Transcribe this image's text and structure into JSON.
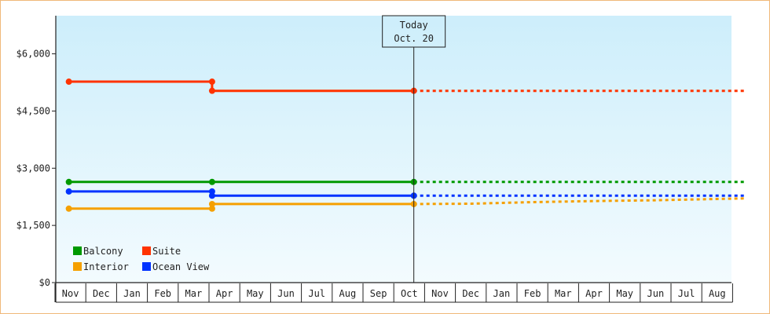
{
  "chart_data": {
    "type": "line",
    "title": "",
    "xlabel": "",
    "ylabel": "",
    "x_months": [
      "Nov",
      "Dec",
      "Jan",
      "Feb",
      "Mar",
      "Apr",
      "May",
      "Jun",
      "Jul",
      "Aug",
      "Sep",
      "Oct",
      "Nov",
      "Dec",
      "Jan",
      "Feb",
      "Mar",
      "Apr",
      "May",
      "Jun",
      "Jul",
      "Aug"
    ],
    "today_index": 11.15,
    "today_label": [
      "Today",
      "Oct. 20"
    ],
    "ylim": [
      0,
      7000
    ],
    "y_ticks": [
      0,
      1500,
      3000,
      4500,
      6000
    ],
    "y_tick_labels": [
      "$0",
      "$1,500",
      "$3,000",
      "$4,500",
      "$6,000"
    ],
    "grid": false,
    "background_gradient": [
      "#cdeefb",
      "#f3fbfe"
    ],
    "legend_position": "bottom-left",
    "series": [
      {
        "name": "Suite",
        "color": "#ff3300",
        "history": [
          [
            -0.05,
            5270
          ],
          [
            4.6,
            5270
          ],
          [
            4.6,
            5030
          ],
          [
            11.15,
            5030
          ]
        ],
        "markers": [
          [
            -0.05,
            5270
          ],
          [
            4.6,
            5270
          ],
          [
            4.6,
            5030
          ],
          [
            11.15,
            5030
          ]
        ],
        "projection": [
          [
            11.15,
            5030
          ],
          [
            21.95,
            5030
          ]
        ]
      },
      {
        "name": "Balcony",
        "color": "#009900",
        "history": [
          [
            -0.05,
            2640
          ],
          [
            4.6,
            2640
          ],
          [
            11.15,
            2640
          ]
        ],
        "markers": [
          [
            -0.05,
            2640
          ],
          [
            4.6,
            2640
          ],
          [
            11.15,
            2640
          ]
        ],
        "projection": [
          [
            11.15,
            2640
          ],
          [
            21.95,
            2640
          ]
        ]
      },
      {
        "name": "Ocean View",
        "color": "#0033ff",
        "history": [
          [
            -0.05,
            2390
          ],
          [
            4.6,
            2390
          ],
          [
            4.6,
            2280
          ],
          [
            11.15,
            2280
          ]
        ],
        "markers": [
          [
            -0.05,
            2390
          ],
          [
            4.6,
            2390
          ],
          [
            4.6,
            2280
          ],
          [
            11.15,
            2280
          ]
        ],
        "projection": [
          [
            11.15,
            2280
          ],
          [
            21.95,
            2280
          ]
        ]
      },
      {
        "name": "Interior",
        "color": "#f5a000",
        "history": [
          [
            -0.05,
            1940
          ],
          [
            4.6,
            1940
          ],
          [
            4.6,
            2060
          ],
          [
            11.15,
            2060
          ]
        ],
        "markers": [
          [
            -0.05,
            1940
          ],
          [
            4.6,
            1940
          ],
          [
            4.6,
            2060
          ],
          [
            11.15,
            2060
          ]
        ],
        "projection": [
          [
            11.15,
            2060
          ],
          [
            13,
            2070
          ],
          [
            15,
            2110
          ],
          [
            17,
            2140
          ],
          [
            19,
            2160
          ],
          [
            21.95,
            2210
          ]
        ]
      }
    ],
    "legend": [
      {
        "name": "Balcony",
        "color": "#009900"
      },
      {
        "name": "Suite",
        "color": "#ff3300"
      },
      {
        "name": "Interior",
        "color": "#f5a000"
      },
      {
        "name": "Ocean View",
        "color": "#0033ff"
      }
    ]
  }
}
